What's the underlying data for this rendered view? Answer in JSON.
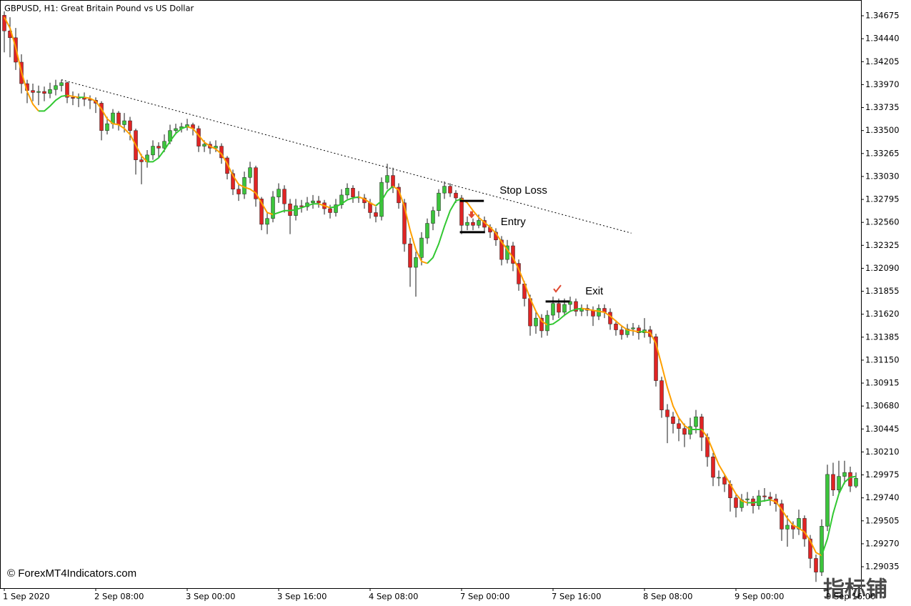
{
  "chart_data": {
    "type": "candlestick",
    "title": "GBPUSD, H1:  Great Britain Pound vs US Dollar",
    "watermark": "© ForexMT4Indicators.com",
    "corner_mark": "指标铺",
    "bull_color": "#3cc43c",
    "bear_color": "#e02424",
    "wick_color": "#1a1a1a",
    "xlim": [
      -0.75,
      149.875
    ],
    "xticks": [
      {
        "value": 0,
        "label": "1 Sep 2020"
      },
      {
        "value": 16,
        "label": "2 Sep 08:00"
      },
      {
        "value": 32,
        "label": "3 Sep 00:00"
      },
      {
        "value": 48,
        "label": "3 Sep 16:00"
      },
      {
        "value": 64,
        "label": "4 Sep 08:00"
      },
      {
        "value": 80,
        "label": "7 Sep 00:00"
      },
      {
        "value": 96,
        "label": "7 Sep 16:00"
      },
      {
        "value": 112,
        "label": "8 Sep 08:00"
      },
      {
        "value": 128,
        "label": "9 Sep 00:00"
      },
      {
        "value": 144,
        "label": "9 Sep 16:00"
      }
    ],
    "ylim": [
      1.28816,
      1.34807
    ],
    "yticks": [
      1.34675,
      {
        "value": 1.3444,
        "label": "1.34440"
      },
      1.34205,
      {
        "value": 1.3397,
        "label": "1.33970"
      },
      1.33735,
      {
        "value": 1.335,
        "label": "1.33500"
      },
      1.33265,
      {
        "value": 1.3303,
        "label": "1.33030"
      },
      1.32795,
      {
        "value": 1.3256,
        "label": "1.32560"
      },
      1.32325,
      {
        "value": 1.3209,
        "label": "1.32090"
      },
      1.31855,
      {
        "value": 1.3162,
        "label": "1.31620"
      },
      1.31385,
      {
        "value": 1.3115,
        "label": "1.31150"
      },
      1.30915,
      {
        "value": 1.3068,
        "label": "1.30680"
      },
      1.30445,
      {
        "value": 1.3021,
        "label": "1.30210"
      },
      1.29975,
      {
        "value": 1.2974,
        "label": "1.29740"
      },
      1.29505,
      {
        "value": 1.2927,
        "label": "1.29270"
      },
      1.29035
    ],
    "ohlc": [
      [
        1.3468,
        1.3472,
        1.343,
        1.3452
      ],
      [
        1.3452,
        1.3466,
        1.3425,
        1.3445
      ],
      [
        1.3445,
        1.3455,
        1.3412,
        1.342
      ],
      [
        1.342,
        1.3428,
        1.3388,
        1.3398
      ],
      [
        1.3398,
        1.3402,
        1.3378,
        1.3391
      ],
      [
        1.3391,
        1.3398,
        1.338,
        1.3389
      ],
      [
        1.3389,
        1.3396,
        1.3376,
        1.339
      ],
      [
        1.339,
        1.3395,
        1.338,
        1.3388
      ],
      [
        1.3388,
        1.3399,
        1.3383,
        1.3392
      ],
      [
        1.3392,
        1.3402,
        1.3386,
        1.3396
      ],
      [
        1.3396,
        1.3402,
        1.339,
        1.3399
      ],
      [
        1.3399,
        1.34,
        1.3378,
        1.3384
      ],
      [
        1.3384,
        1.339,
        1.3376,
        1.3383
      ],
      [
        1.3383,
        1.3388,
        1.3374,
        1.3384
      ],
      [
        1.3384,
        1.3389,
        1.3375,
        1.3382
      ],
      [
        1.3382,
        1.3386,
        1.3372,
        1.3381
      ],
      [
        1.3381,
        1.3384,
        1.3368,
        1.3378
      ],
      [
        1.3378,
        1.338,
        1.334,
        1.335
      ],
      [
        1.335,
        1.3364,
        1.3346,
        1.3357
      ],
      [
        1.3357,
        1.3372,
        1.3352,
        1.3368
      ],
      [
        1.3368,
        1.337,
        1.335,
        1.3356
      ],
      [
        1.3356,
        1.3368,
        1.3348,
        1.336
      ],
      [
        1.336,
        1.3364,
        1.334,
        1.335
      ],
      [
        1.335,
        1.3352,
        1.3305,
        1.332
      ],
      [
        1.332,
        1.3326,
        1.3295,
        1.3318
      ],
      [
        1.3318,
        1.333,
        1.3312,
        1.3325
      ],
      [
        1.3325,
        1.334,
        1.332,
        1.3334
      ],
      [
        1.3334,
        1.3338,
        1.3322,
        1.3332
      ],
      [
        1.3332,
        1.3346,
        1.3328,
        1.3339
      ],
      [
        1.3339,
        1.3356,
        1.3336,
        1.335
      ],
      [
        1.335,
        1.3357,
        1.3346,
        1.3352
      ],
      [
        1.3352,
        1.3358,
        1.3348,
        1.3354
      ],
      [
        1.3354,
        1.3362,
        1.335,
        1.3356
      ],
      [
        1.3356,
        1.3358,
        1.3345,
        1.3352
      ],
      [
        1.3352,
        1.3355,
        1.3328,
        1.3334
      ],
      [
        1.3334,
        1.334,
        1.3328,
        1.3336
      ],
      [
        1.3336,
        1.3339,
        1.3326,
        1.3332
      ],
      [
        1.3332,
        1.334,
        1.3328,
        1.3334
      ],
      [
        1.3334,
        1.3337,
        1.3316,
        1.3322
      ],
      [
        1.3322,
        1.3324,
        1.33,
        1.3306
      ],
      [
        1.3306,
        1.331,
        1.3284,
        1.329
      ],
      [
        1.329,
        1.3296,
        1.3278,
        1.3285
      ],
      [
        1.3285,
        1.3308,
        1.328,
        1.3302
      ],
      [
        1.3302,
        1.3318,
        1.3296,
        1.3312
      ],
      [
        1.3312,
        1.3314,
        1.3272,
        1.328
      ],
      [
        1.328,
        1.3282,
        1.3248,
        1.3254
      ],
      [
        1.3254,
        1.3266,
        1.3244,
        1.326
      ],
      [
        1.326,
        1.3288,
        1.3256,
        1.3282
      ],
      [
        1.3282,
        1.3296,
        1.3276,
        1.329
      ],
      [
        1.329,
        1.3294,
        1.3266,
        1.3275
      ],
      [
        1.3275,
        1.328,
        1.3244,
        1.3263
      ],
      [
        1.3263,
        1.328,
        1.3258,
        1.3273
      ],
      [
        1.3273,
        1.3279,
        1.3266,
        1.3272
      ],
      [
        1.3272,
        1.3282,
        1.3268,
        1.3276
      ],
      [
        1.3276,
        1.3284,
        1.327,
        1.3278
      ],
      [
        1.3278,
        1.3283,
        1.3271,
        1.3276
      ],
      [
        1.3276,
        1.3279,
        1.3264,
        1.327
      ],
      [
        1.327,
        1.3274,
        1.326,
        1.3266
      ],
      [
        1.3266,
        1.328,
        1.3262,
        1.3274
      ],
      [
        1.3274,
        1.329,
        1.327,
        1.3284
      ],
      [
        1.3284,
        1.3296,
        1.328,
        1.3291
      ],
      [
        1.3291,
        1.3294,
        1.3276,
        1.3282
      ],
      [
        1.3282,
        1.3288,
        1.3276,
        1.3281
      ],
      [
        1.3281,
        1.3285,
        1.327,
        1.3276
      ],
      [
        1.3276,
        1.328,
        1.326,
        1.3266
      ],
      [
        1.3266,
        1.3272,
        1.3256,
        1.3262
      ],
      [
        1.3262,
        1.3302,
        1.3258,
        1.3297
      ],
      [
        1.3297,
        1.3316,
        1.329,
        1.3304
      ],
      [
        1.3304,
        1.3312,
        1.3286,
        1.3292
      ],
      [
        1.3292,
        1.3296,
        1.327,
        1.3276
      ],
      [
        1.3276,
        1.328,
        1.3226,
        1.3234
      ],
      [
        1.3234,
        1.324,
        1.319,
        1.321
      ],
      [
        1.321,
        1.3226,
        1.318,
        1.322
      ],
      [
        1.322,
        1.3246,
        1.3212,
        1.324
      ],
      [
        1.324,
        1.326,
        1.3234,
        1.3255
      ],
      [
        1.3255,
        1.3272,
        1.3248,
        1.3268
      ],
      [
        1.3268,
        1.329,
        1.3262,
        1.3286
      ],
      [
        1.3286,
        1.3298,
        1.328,
        1.3293
      ],
      [
        1.3293,
        1.3296,
        1.3282,
        1.3286
      ],
      [
        1.3286,
        1.3289,
        1.3276,
        1.3281
      ],
      [
        1.3281,
        1.3284,
        1.3244,
        1.3253
      ],
      [
        1.3253,
        1.3262,
        1.3248,
        1.3256
      ],
      [
        1.3256,
        1.326,
        1.3248,
        1.3253
      ],
      [
        1.3253,
        1.3264,
        1.325,
        1.3258
      ],
      [
        1.3258,
        1.3262,
        1.3246,
        1.3251
      ],
      [
        1.3251,
        1.3254,
        1.324,
        1.3246
      ],
      [
        1.3246,
        1.325,
        1.3232,
        1.3238
      ],
      [
        1.3238,
        1.3242,
        1.3212,
        1.3218
      ],
      [
        1.3218,
        1.3238,
        1.3214,
        1.3232
      ],
      [
        1.3232,
        1.3236,
        1.3206,
        1.3214
      ],
      [
        1.3214,
        1.3218,
        1.3186,
        1.3193
      ],
      [
        1.3193,
        1.3196,
        1.317,
        1.3178
      ],
      [
        1.3178,
        1.3182,
        1.314,
        1.315
      ],
      [
        1.315,
        1.3166,
        1.3142,
        1.3158
      ],
      [
        1.3158,
        1.3162,
        1.3138,
        1.3145
      ],
      [
        1.3145,
        1.3166,
        1.314,
        1.3161
      ],
      [
        1.3161,
        1.318,
        1.3156,
        1.3173
      ],
      [
        1.3173,
        1.3178,
        1.3158,
        1.3164
      ],
      [
        1.3164,
        1.3178,
        1.316,
        1.3172
      ],
      [
        1.3172,
        1.318,
        1.3166,
        1.3175
      ],
      [
        1.3175,
        1.3178,
        1.316,
        1.3165
      ],
      [
        1.3165,
        1.3172,
        1.316,
        1.3168
      ],
      [
        1.3168,
        1.3172,
        1.316,
        1.3166
      ],
      [
        1.3166,
        1.317,
        1.315,
        1.316
      ],
      [
        1.316,
        1.3172,
        1.3156,
        1.3168
      ],
      [
        1.3168,
        1.3172,
        1.3158,
        1.3164
      ],
      [
        1.3164,
        1.3168,
        1.3146,
        1.3152
      ],
      [
        1.3152,
        1.3156,
        1.314,
        1.3146
      ],
      [
        1.3146,
        1.315,
        1.3136,
        1.3141
      ],
      [
        1.3141,
        1.3152,
        1.3138,
        1.3147
      ],
      [
        1.3147,
        1.3153,
        1.314,
        1.3148
      ],
      [
        1.3148,
        1.3151,
        1.3136,
        1.3143
      ],
      [
        1.3143,
        1.3158,
        1.3138,
        1.3146
      ],
      [
        1.3146,
        1.315,
        1.3132,
        1.3139
      ],
      [
        1.3139,
        1.3142,
        1.3088,
        1.3094
      ],
      [
        1.3094,
        1.3098,
        1.3056,
        1.3064
      ],
      [
        1.3064,
        1.307,
        1.303,
        1.3057
      ],
      [
        1.3057,
        1.3062,
        1.304,
        1.305
      ],
      [
        1.305,
        1.3056,
        1.3032,
        1.3045
      ],
      [
        1.3045,
        1.305,
        1.3026,
        1.3039
      ],
      [
        1.3039,
        1.3056,
        1.3034,
        1.3047
      ],
      [
        1.3047,
        1.3064,
        1.304,
        1.3057
      ],
      [
        1.3057,
        1.306,
        1.3022,
        1.3036
      ],
      [
        1.3036,
        1.304,
        1.3006,
        1.3016
      ],
      [
        1.3016,
        1.302,
        1.2986,
        1.2995
      ],
      [
        1.2995,
        1.3002,
        1.2986,
        1.2995
      ],
      [
        1.2995,
        1.2999,
        1.298,
        1.2988
      ],
      [
        1.2988,
        1.2992,
        1.296,
        1.2974
      ],
      [
        1.2974,
        1.2978,
        1.2954,
        1.2964
      ],
      [
        1.2964,
        1.2978,
        1.296,
        1.2972
      ],
      [
        1.2972,
        1.298,
        1.2966,
        1.2973
      ],
      [
        1.2973,
        1.2976,
        1.2958,
        1.2966
      ],
      [
        1.2966,
        1.2982,
        1.2962,
        1.2976
      ],
      [
        1.2976,
        1.2984,
        1.297,
        1.2975
      ],
      [
        1.2975,
        1.298,
        1.2966,
        1.2973
      ],
      [
        1.2973,
        1.2978,
        1.296,
        1.2968
      ],
      [
        1.2968,
        1.2972,
        1.293,
        1.2942
      ],
      [
        1.2942,
        1.2956,
        1.2924,
        1.2946
      ],
      [
        1.2946,
        1.295,
        1.2932,
        1.2942
      ],
      [
        1.2942,
        1.2962,
        1.2936,
        1.2953
      ],
      [
        1.2953,
        1.2956,
        1.2924,
        1.2932
      ],
      [
        1.2932,
        1.2936,
        1.2902,
        1.2912
      ],
      [
        1.2912,
        1.2916,
        1.2888,
        1.2898
      ],
      [
        1.2898,
        1.2952,
        1.2894,
        1.2945
      ],
      [
        1.2945,
        1.3008,
        1.294,
        1.2998
      ],
      [
        1.2998,
        1.301,
        1.2976,
        1.2982
      ],
      [
        1.2982,
        1.3012,
        1.2978,
        1.2996
      ],
      [
        1.2996,
        1.3012,
        1.2988,
        1.3
      ],
      [
        1.3,
        1.3006,
        1.298,
        1.2986
      ],
      [
        1.2986,
        1.3,
        1.2984,
        1.2994
      ]
    ],
    "ma": {
      "up_color": "#32c832",
      "down_color": "#ffa000",
      "values": [
        1.3466,
        1.3455,
        1.3435,
        1.341,
        1.339,
        1.3377,
        1.337,
        1.337,
        1.3375,
        1.3381,
        1.3385,
        1.3386,
        1.3385,
        1.3384,
        1.3384,
        1.3383,
        1.338,
        1.3372,
        1.3362,
        1.3357,
        1.3356,
        1.3352,
        1.3346,
        1.3335,
        1.3324,
        1.3318,
        1.3318,
        1.3322,
        1.333,
        1.3339,
        1.3347,
        1.3352,
        1.3354,
        1.3352,
        1.3345,
        1.3338,
        1.3334,
        1.3331,
        1.3326,
        1.3316,
        1.3304,
        1.3295,
        1.3292,
        1.329,
        1.3286,
        1.3276,
        1.3266,
        1.3264,
        1.3266,
        1.3268,
        1.3268,
        1.3269,
        1.3271,
        1.3273,
        1.3275,
        1.3275,
        1.3273,
        1.3271,
        1.3272,
        1.3275,
        1.3279,
        1.3281,
        1.3282,
        1.328,
        1.3276,
        1.3273,
        1.3278,
        1.3288,
        1.3293,
        1.3289,
        1.3272,
        1.3248,
        1.3228,
        1.3216,
        1.3214,
        1.322,
        1.3234,
        1.3252,
        1.3268,
        1.3278,
        1.328,
        1.3276,
        1.3268,
        1.3261,
        1.3256,
        1.3251,
        1.3245,
        1.3236,
        1.3228,
        1.322,
        1.3208,
        1.3194,
        1.3178,
        1.3165,
        1.3155,
        1.3151,
        1.3152,
        1.3156,
        1.3161,
        1.3165,
        1.3167,
        1.3168,
        1.3167,
        1.3166,
        1.3165,
        1.3164,
        1.316,
        1.3155,
        1.315,
        1.3146,
        1.3145,
        1.3144,
        1.3144,
        1.3143,
        1.3132,
        1.311,
        1.3087,
        1.3068,
        1.3056,
        1.3048,
        1.3044,
        1.3044,
        1.3044,
        1.3036,
        1.3022,
        1.3008,
        1.2998,
        1.2988,
        1.2978,
        1.2971,
        1.2969,
        1.2969,
        1.297,
        1.2971,
        1.2972,
        1.297,
        1.2962,
        1.2953,
        1.2946,
        1.2943,
        1.2939,
        1.293,
        1.2918,
        1.2915,
        1.2932,
        1.2958,
        1.2978,
        1.299,
        1.2995,
        1.2996
      ]
    },
    "trendline": {
      "x": [
        10,
        109.7
      ],
      "y": [
        1.3402,
        1.3245
      ]
    },
    "levels": [
      {
        "label": "Stop Loss",
        "price": 1.3278,
        "x": [
          79.7,
          83.9
        ]
      },
      {
        "label": "Entry",
        "price": 1.3246,
        "x": [
          79.7,
          84.1
        ]
      },
      {
        "label": "Exit",
        "price": 1.3175,
        "x": [
          94.7,
          98.9
        ]
      }
    ],
    "markers": [
      {
        "kind": "sell",
        "x": 81.75,
        "price": 1.3263,
        "color": "#e04830"
      },
      {
        "kind": "exit",
        "x": 96.75,
        "price": 1.3188,
        "color": "#e04830"
      }
    ]
  }
}
